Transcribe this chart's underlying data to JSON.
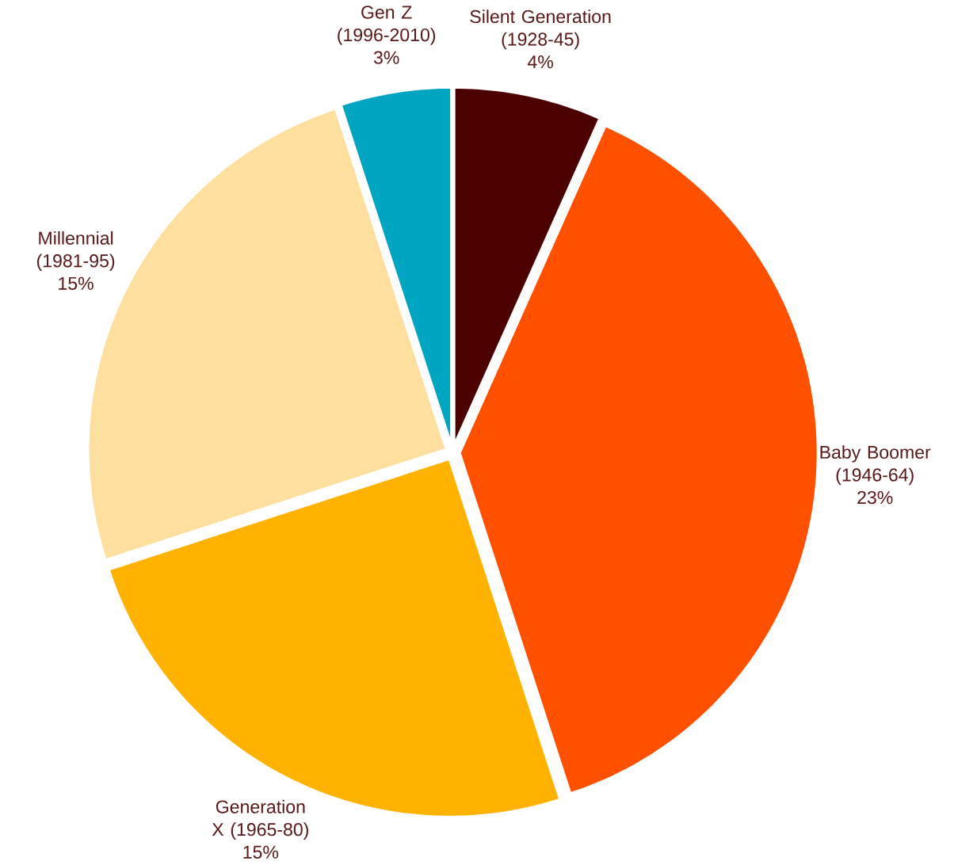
{
  "chart_data": {
    "type": "pie",
    "categories": [
      "Silent Generation (1928-45)",
      "Baby Boomer (1946-64)",
      "Generation X (1965-80)",
      "Millennial (1981-95)",
      "Gen Z (1996-2010)"
    ],
    "values": [
      4,
      23,
      15,
      15,
      3
    ],
    "value_labels": [
      "4%",
      "23%",
      "15%",
      "15%",
      "3%"
    ],
    "colors": [
      "#4d0000",
      "#ff5000",
      "#ffb300",
      "#ffdf9e",
      "#00a5c2"
    ]
  }
}
